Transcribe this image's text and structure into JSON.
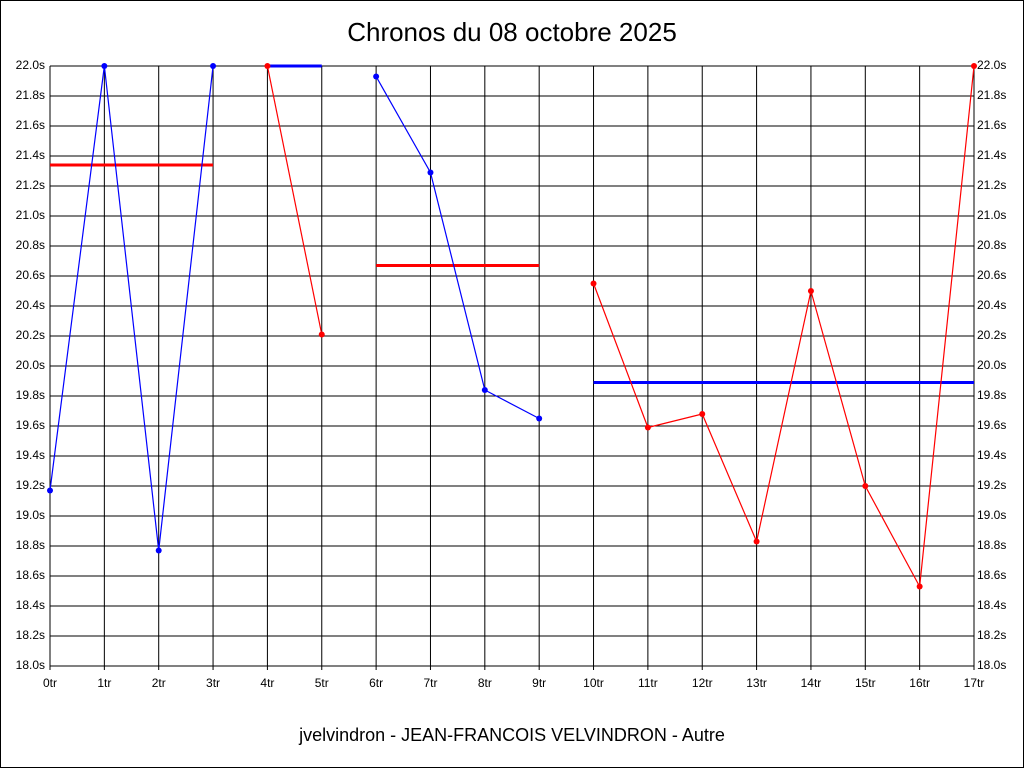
{
  "chart_data": {
    "type": "line",
    "title": "Chronos du 08 octobre 2025",
    "x_label": "jvelvindron - JEAN-FRANCOIS VELVINDRON - Autre",
    "xlim": [
      0,
      17
    ],
    "ylim": [
      18.0,
      22.0
    ],
    "grid": true,
    "xticks": [
      {
        "value": 0,
        "label": "0tr"
      },
      {
        "value": 1,
        "label": "1tr"
      },
      {
        "value": 2,
        "label": "2tr"
      },
      {
        "value": 3,
        "label": "3tr"
      },
      {
        "value": 4,
        "label": "4tr"
      },
      {
        "value": 5,
        "label": "5tr"
      },
      {
        "value": 6,
        "label": "6tr"
      },
      {
        "value": 7,
        "label": "7tr"
      },
      {
        "value": 8,
        "label": "8tr"
      },
      {
        "value": 9,
        "label": "9tr"
      },
      {
        "value": 10,
        "label": "10tr"
      },
      {
        "value": 11,
        "label": "11tr"
      },
      {
        "value": 12,
        "label": "12tr"
      },
      {
        "value": 13,
        "label": "13tr"
      },
      {
        "value": 14,
        "label": "14tr"
      },
      {
        "value": 15,
        "label": "15tr"
      },
      {
        "value": 16,
        "label": "16tr"
      },
      {
        "value": 17,
        "label": "17tr"
      }
    ],
    "yticks": [
      {
        "value": 18.0,
        "label": "18.0s"
      },
      {
        "value": 18.2,
        "label": "18.2s"
      },
      {
        "value": 18.4,
        "label": "18.4s"
      },
      {
        "value": 18.6,
        "label": "18.6s"
      },
      {
        "value": 18.8,
        "label": "18.8s"
      },
      {
        "value": 19.0,
        "label": "19.0s"
      },
      {
        "value": 19.2,
        "label": "19.2s"
      },
      {
        "value": 19.4,
        "label": "19.4s"
      },
      {
        "value": 19.6,
        "label": "19.6s"
      },
      {
        "value": 19.8,
        "label": "19.8s"
      },
      {
        "value": 20.0,
        "label": "20.0s"
      },
      {
        "value": 20.2,
        "label": "20.2s"
      },
      {
        "value": 20.4,
        "label": "20.4s"
      },
      {
        "value": 20.6,
        "label": "20.6s"
      },
      {
        "value": 20.8,
        "label": "20.8s"
      },
      {
        "value": 21.0,
        "label": "21.0s"
      },
      {
        "value": 21.2,
        "label": "21.2s"
      },
      {
        "value": 21.4,
        "label": "21.4s"
      },
      {
        "value": 21.6,
        "label": "21.6s"
      },
      {
        "value": 21.8,
        "label": "21.8s"
      },
      {
        "value": 22.0,
        "label": "22.0s"
      }
    ],
    "series": [
      {
        "color": "#0000ff",
        "x": [
          0,
          1,
          2,
          3
        ],
        "values": [
          19.17,
          22.0,
          18.77,
          22.0
        ]
      },
      {
        "color": "#ff0000",
        "x": [
          4,
          5
        ],
        "values": [
          22.0,
          20.21
        ]
      },
      {
        "color": "#0000ff",
        "x": [
          6,
          7,
          8,
          9
        ],
        "values": [
          21.93,
          21.29,
          19.84,
          19.65
        ]
      },
      {
        "color": "#ff0000",
        "x": [
          10,
          11,
          12,
          13,
          14,
          15,
          16,
          17
        ],
        "values": [
          20.55,
          19.59,
          19.68,
          18.83,
          20.5,
          19.2,
          18.53,
          22.0
        ]
      }
    ],
    "levels": [
      {
        "color": "#ff0000",
        "x": [
          0,
          3
        ],
        "value": 21.34
      },
      {
        "color": "#0000ff",
        "x": [
          4,
          5
        ],
        "value": 22.0
      },
      {
        "color": "#ff0000",
        "x": [
          6,
          9
        ],
        "value": 20.67
      },
      {
        "color": "#0000ff",
        "x": [
          10,
          17
        ],
        "value": 19.89
      }
    ]
  }
}
